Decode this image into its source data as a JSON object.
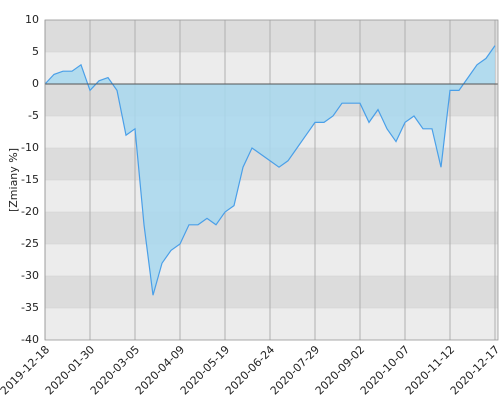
{
  "chart_data": {
    "type": "area",
    "y_label": "[Zmiany %]",
    "categories": [
      "2019-12-18",
      null,
      null,
      null,
      null,
      "2020-01-30",
      null,
      null,
      null,
      null,
      "2020-03-05",
      null,
      null,
      null,
      null,
      "2020-04-09",
      null,
      null,
      null,
      null,
      "2020-05-19",
      null,
      null,
      null,
      null,
      "2020-06-24",
      null,
      null,
      null,
      null,
      "2020-07-29",
      null,
      null,
      null,
      null,
      "2020-09-02",
      null,
      null,
      null,
      null,
      "2020-10-07",
      null,
      null,
      null,
      null,
      "2020-11-12",
      null,
      null,
      null,
      null,
      "2020-12-17"
    ],
    "values": [
      0,
      1.5,
      2,
      2,
      3,
      -1,
      0.5,
      1,
      -1,
      -8,
      -7,
      -22,
      -33,
      -28,
      -26,
      -25,
      -22,
      -22,
      -21,
      -22,
      -20,
      -19,
      -13,
      -10,
      -11,
      -12,
      -13,
      -12,
      -10,
      -8,
      -6,
      -6,
      -5,
      -3,
      -3,
      -3,
      -6,
      -4,
      -7,
      -9,
      -6,
      -5,
      -7,
      -7,
      -13,
      -1,
      -1,
      1,
      3,
      4,
      6
    ],
    "color": "#4a9fe8",
    "fill": "#a8d8ee",
    "ylim": [
      -40,
      10
    ],
    "yticks": [
      -40,
      -35,
      -30,
      -25,
      -20,
      -15,
      -10,
      -5,
      0,
      5,
      10
    ],
    "grid": true
  }
}
